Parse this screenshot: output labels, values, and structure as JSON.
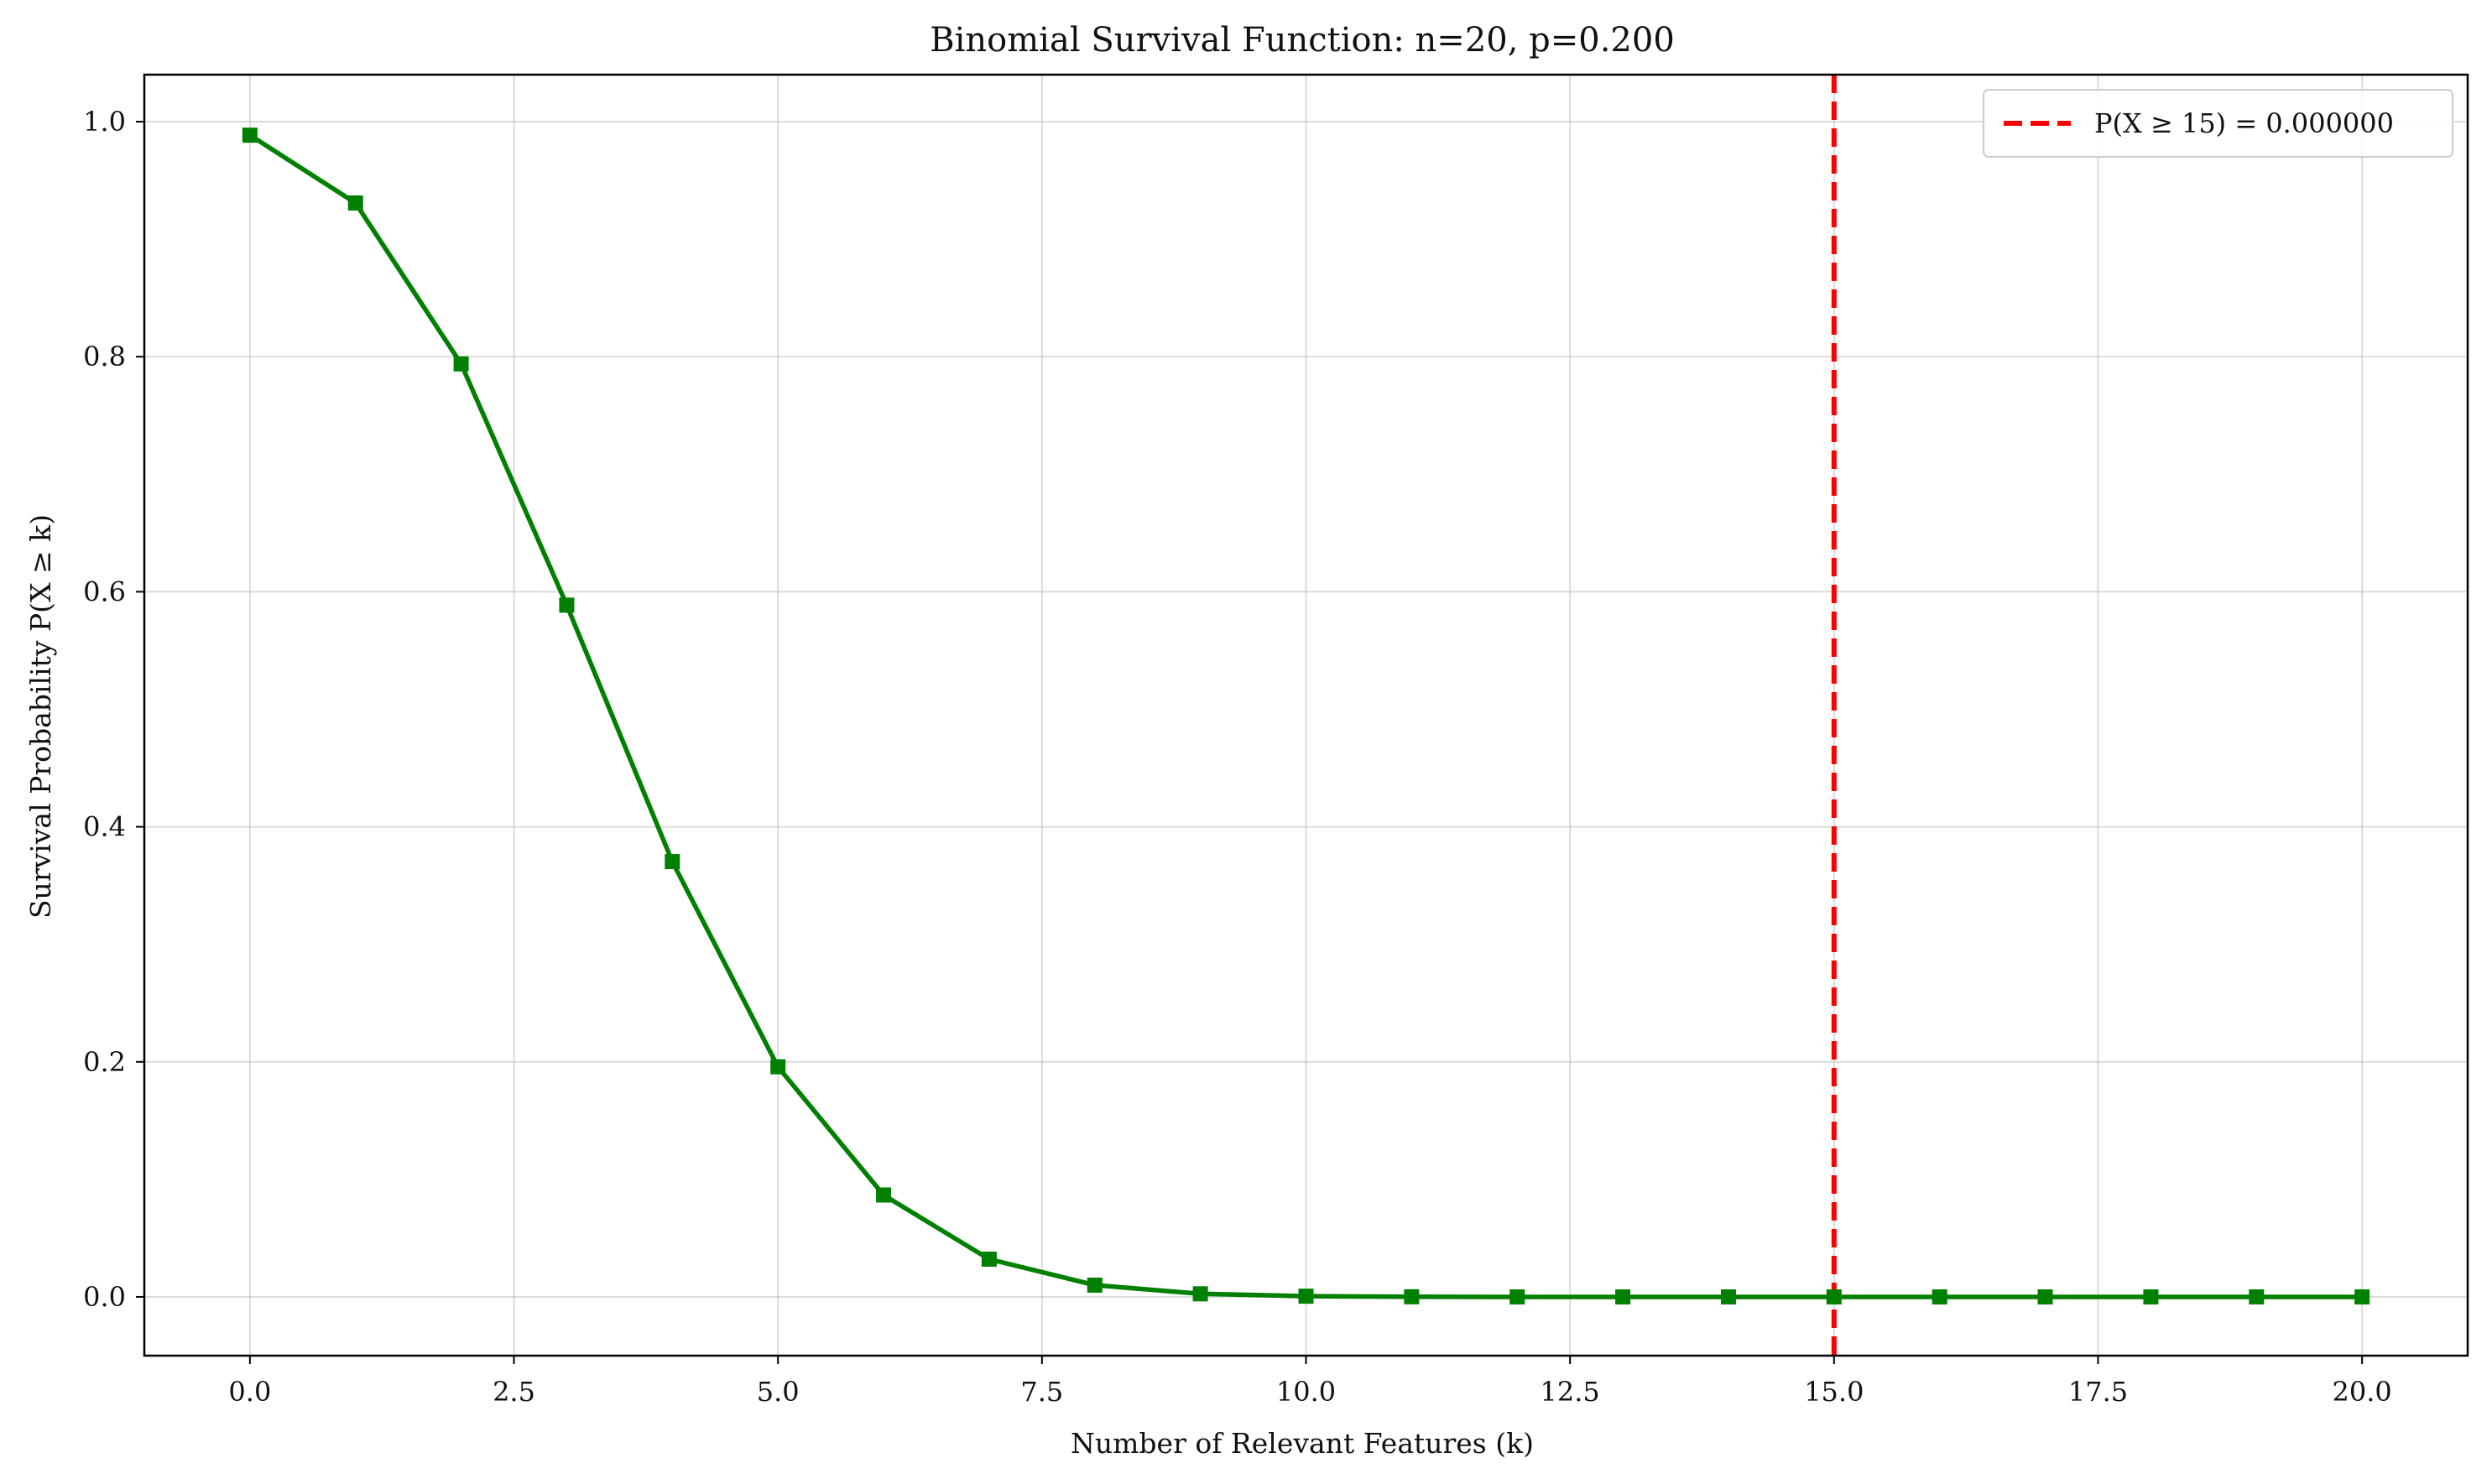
{
  "chart_data": {
    "type": "line",
    "title": "Binomial Survival Function: n=20, p=0.200",
    "xlabel": "Number of Relevant Features (k)",
    "ylabel": "Survival Probability P(X ≥ k)",
    "xlim": [
      -1,
      21
    ],
    "ylim": [
      -0.05,
      1.04
    ],
    "x_ticks": [
      0,
      2.5,
      5,
      7.5,
      10,
      12.5,
      15,
      17.5,
      20
    ],
    "x_tick_labels": [
      "0.0",
      "2.5",
      "5.0",
      "7.5",
      "10.0",
      "12.5",
      "15.0",
      "17.5",
      "20.0"
    ],
    "y_ticks": [
      0,
      0.2,
      0.4,
      0.6,
      0.8,
      1.0
    ],
    "y_tick_labels": [
      "0.0",
      "0.2",
      "0.4",
      "0.6",
      "0.8",
      "1.0"
    ],
    "grid": true,
    "legend_position": "top-right",
    "series": [
      {
        "color": "#008000",
        "marker": "square",
        "x": [
          0,
          1,
          2,
          3,
          4,
          5,
          6,
          7,
          8,
          9,
          10,
          11,
          12,
          13,
          14,
          15,
          16,
          17,
          18,
          19,
          20
        ],
        "y": [
          0.9885,
          0.9308,
          0.7939,
          0.5886,
          0.3704,
          0.1958,
          0.0867,
          0.0321,
          0.01,
          0.0026,
          0.0006,
          0.0001,
          0.0,
          0.0,
          0.0,
          0.0,
          0.0,
          0.0,
          0.0,
          0.0,
          0.0
        ]
      }
    ],
    "reference_lines": [
      {
        "orientation": "vertical",
        "x": 15,
        "color": "#ff0000",
        "style": "dashed",
        "label": "P(X ≥ 15) = 0.000000"
      }
    ]
  }
}
